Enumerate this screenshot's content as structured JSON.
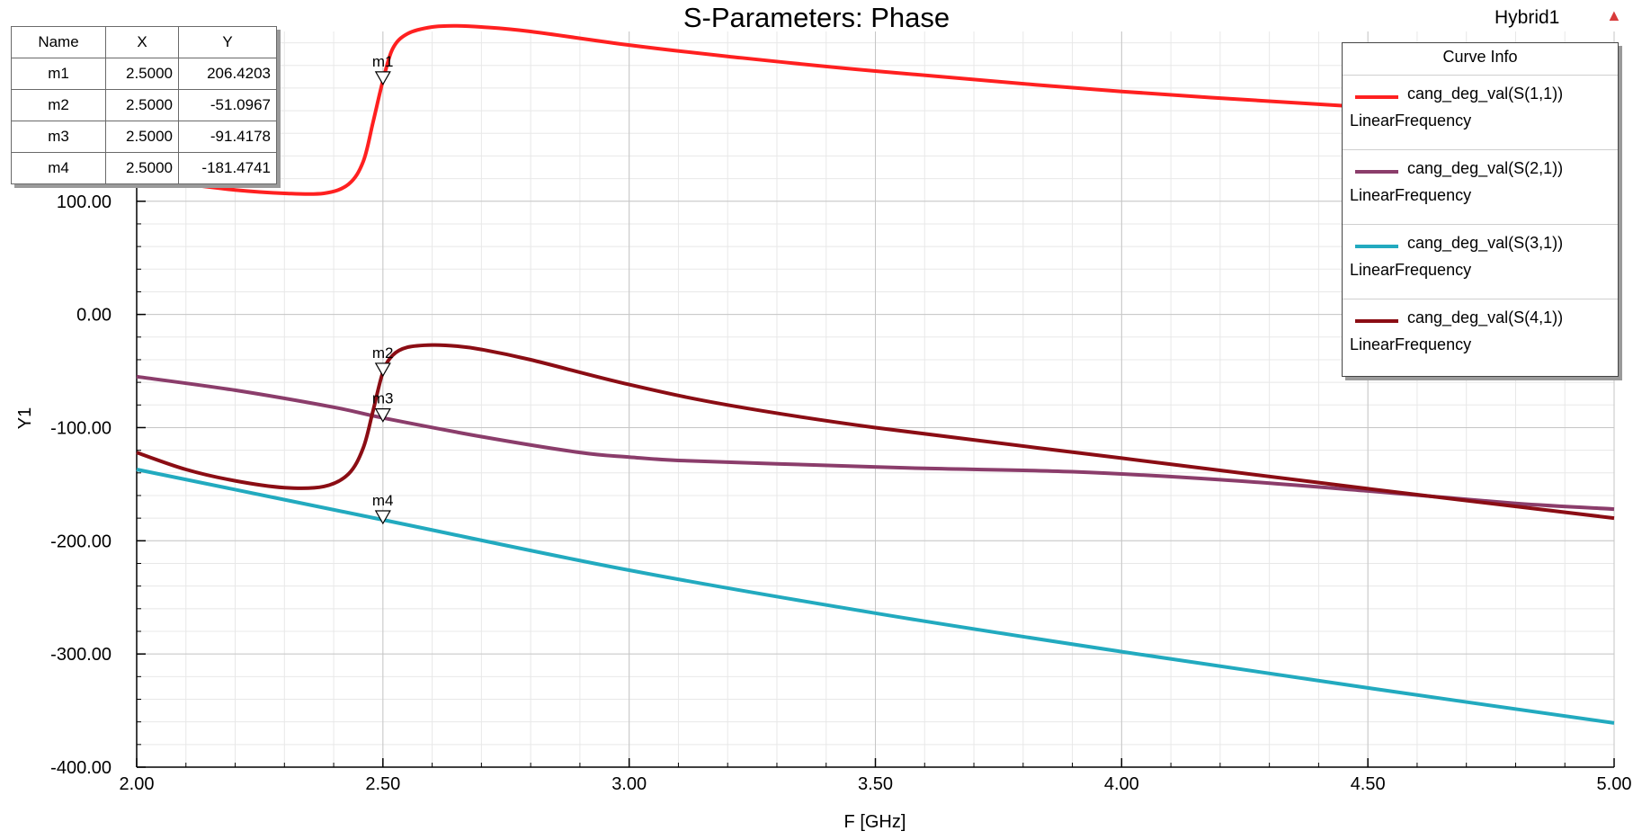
{
  "chart_data": {
    "type": "line",
    "title": "S-Parameters: Phase",
    "xlabel": "F [GHz]",
    "ylabel": "Y1",
    "xlim": [
      2.0,
      5.0
    ],
    "ylim": [
      -400,
      250
    ],
    "xticks": [
      "2.00",
      "2.50",
      "3.00",
      "3.50",
      "4.00",
      "4.50",
      "5.00"
    ],
    "yticks": [
      "100.00",
      "0.00",
      "-100.00",
      "-200.00",
      "-300.00",
      "-400.00"
    ],
    "grid": true,
    "legend_position": "top-right",
    "series": [
      {
        "name": "cang_deg_val(S(1,1))",
        "sub": "LinearFrequency",
        "color": "#ff2020",
        "x": [
          2.0,
          2.1,
          2.2,
          2.3,
          2.38,
          2.43,
          2.46,
          2.48,
          2.5,
          2.52,
          2.55,
          2.6,
          2.65,
          2.7,
          2.8,
          3.0,
          3.2,
          3.5,
          4.0,
          4.5,
          4.6
        ],
        "y": [
          120,
          115,
          110,
          107,
          107,
          115,
          135,
          170,
          206.42,
          235,
          248,
          254,
          255,
          254,
          250,
          238,
          228,
          215,
          197,
          183,
          180
        ]
      },
      {
        "name": "cang_deg_val(S(2,1))",
        "sub": "LinearFrequency",
        "color": "#8b3d6b",
        "x": [
          2.0,
          2.2,
          2.4,
          2.5,
          2.7,
          2.9,
          3.0,
          3.1,
          3.3,
          3.6,
          3.9,
          4.2,
          4.5,
          4.8,
          5.0
        ],
        "y": [
          -55,
          -67,
          -82,
          -91.42,
          -108,
          -122,
          -126,
          -129,
          -132,
          -136,
          -139,
          -146,
          -156,
          -167,
          -172
        ]
      },
      {
        "name": "cang_deg_val(S(3,1))",
        "sub": "LinearFrequency",
        "color": "#22aabf",
        "x": [
          2.0,
          2.5,
          3.0,
          3.5,
          4.0,
          4.5,
          5.0
        ],
        "y": [
          -137,
          -181.47,
          -226,
          -264,
          -298,
          -330,
          -361
        ]
      },
      {
        "name": "cang_deg_val(S(4,1))",
        "sub": "LinearFrequency",
        "color": "#8b0d14",
        "x": [
          2.0,
          2.1,
          2.2,
          2.3,
          2.38,
          2.43,
          2.46,
          2.48,
          2.5,
          2.52,
          2.55,
          2.6,
          2.65,
          2.7,
          2.8,
          3.0,
          3.2,
          3.5,
          4.0,
          4.5,
          5.0
        ],
        "y": [
          -122,
          -137,
          -147,
          -153,
          -152,
          -141,
          -118,
          -85,
          -51.1,
          -36,
          -29,
          -27,
          -28,
          -31,
          -40,
          -62,
          -80,
          -100,
          -127,
          -154,
          -180
        ]
      }
    ],
    "markers": [
      {
        "label": "m1",
        "x": 2.5,
        "y": 206.4203
      },
      {
        "label": "m2",
        "x": 2.5,
        "y": -51.0967
      },
      {
        "label": "m3",
        "x": 2.5,
        "y": -91.4178
      },
      {
        "label": "m4",
        "x": 2.5,
        "y": -181.4741
      }
    ]
  },
  "marker_table": {
    "headers": [
      "Name",
      "X",
      "Y"
    ],
    "rows": [
      [
        "m1",
        "2.5000",
        "206.4203"
      ],
      [
        "m2",
        "2.5000",
        "-51.0967"
      ],
      [
        "m3",
        "2.5000",
        "-91.4178"
      ],
      [
        "m4",
        "2.5000",
        "-181.4741"
      ]
    ]
  },
  "legend": {
    "title": "Curve Info"
  },
  "design_label": "Hybrid1"
}
